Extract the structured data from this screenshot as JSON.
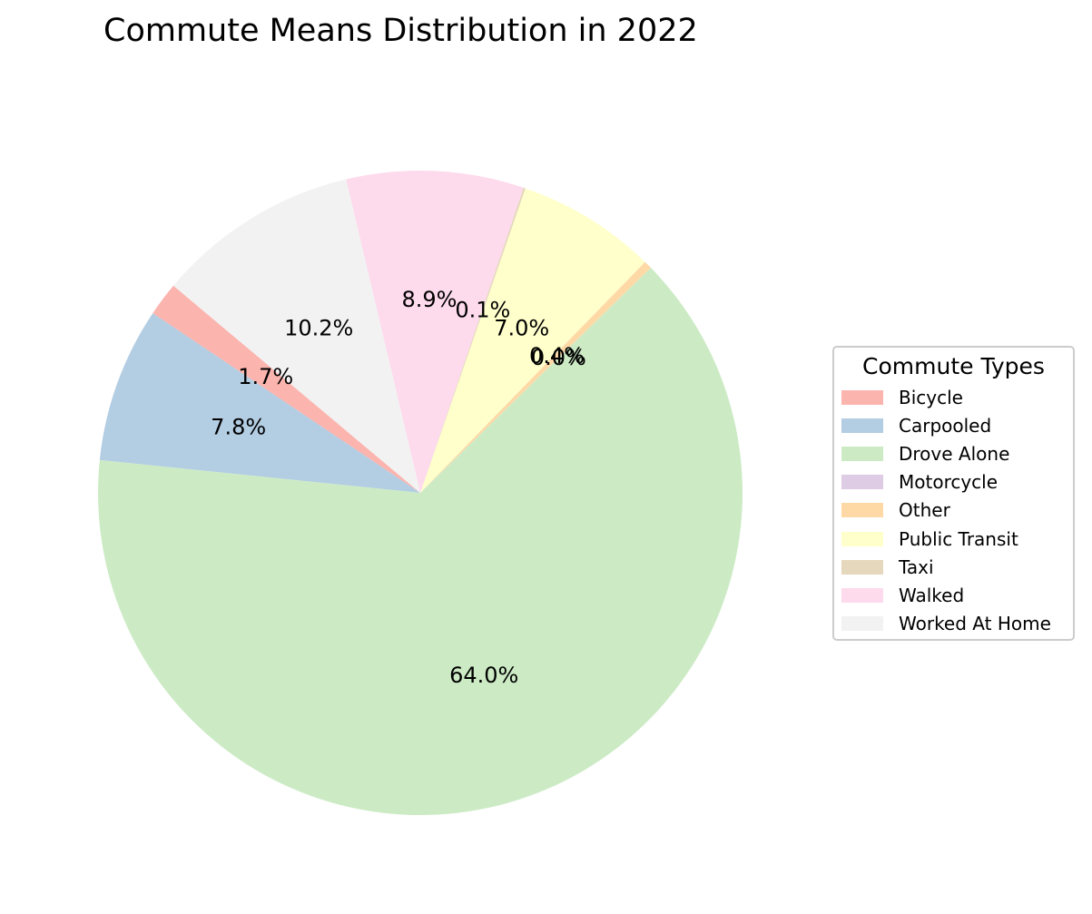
{
  "chart_data": {
    "type": "pie",
    "title": "Commute Means Distribution in 2022",
    "legend_title": "Commute Types",
    "legend_position": "center-right",
    "categories": [
      "Bicycle",
      "Carpooled",
      "Drove Alone",
      "Motorcycle",
      "Other",
      "Public Transit",
      "Taxi",
      "Walked",
      "Worked At Home"
    ],
    "values": [
      1.7,
      7.8,
      64.0,
      0.0,
      0.4,
      7.0,
      0.1,
      8.9,
      10.2
    ],
    "labels": [
      "1.7%",
      "7.8%",
      "64.0%",
      "0.0%",
      "0.4%",
      "7.0%",
      "0.1%",
      "8.9%",
      "10.2%"
    ],
    "colors": [
      "#fbb4ae",
      "#b3cde3",
      "#ccebc5",
      "#decbe4",
      "#fed9a6",
      "#ffffcc",
      "#e5d8bd",
      "#fddaec",
      "#f2f2f2"
    ],
    "start_angle_deg": 140,
    "direction": "counterclockwise"
  }
}
